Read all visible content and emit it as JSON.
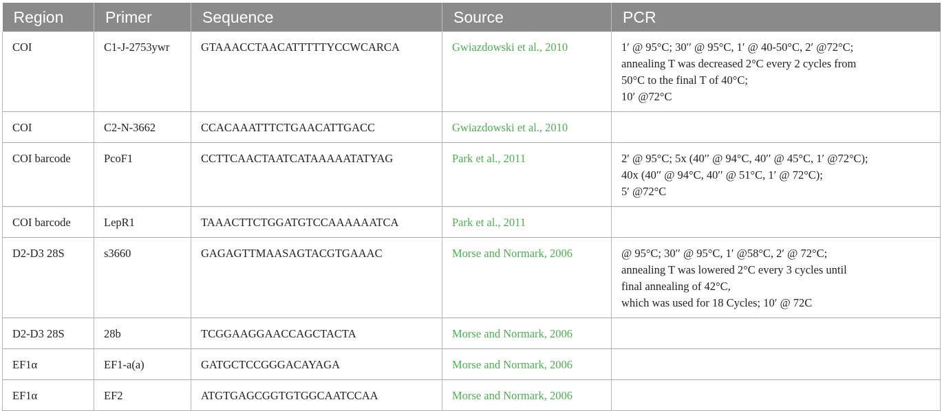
{
  "table": {
    "headers": [
      "Region",
      "Primer",
      "Sequence",
      "Source",
      "PCR"
    ],
    "rows": [
      {
        "region": "COI",
        "primer": "C1-J-2753ywr",
        "sequence": "GTAAACCTAACATTTTTYCCWCARCA",
        "source": "Gwiazdowski et al., 2010",
        "pcr": [
          "1′ @ 95°C; 30′′ @ 95°C, 1′ @ 40-50°C, 2′ @72°C;",
          "annealing T was decreased 2°C every 2 cycles from",
          "50°C to the final T of 40°C;",
          "10′ @72°C"
        ]
      },
      {
        "region": "COI",
        "primer": "C2-N-3662",
        "sequence": "CCACAAATTTCTGAACATTGACC",
        "source": "Gwiazdowski et al., 2010",
        "pcr": []
      },
      {
        "region": "COI barcode",
        "primer": "PcoF1",
        "sequence": "CCTTCAACTAATCATAAAAATATYAG",
        "source": "Park et al., 2011",
        "pcr": [
          "2′ @ 95°C; 5x (40′′ @ 94°C, 40′′ @ 45°C, 1′ @72°C);",
          "40x (40′′ @ 94°C, 40′′ @ 51°C, 1′ @ 72°C);",
          "5′ @72°C"
        ]
      },
      {
        "region": "COI barcode",
        "primer": "LepR1",
        "sequence": "TAAACTTCTGGATGTCCAAAAAATCA",
        "source": "Park et al., 2011",
        "pcr": []
      },
      {
        "region": "D2-D3 28S",
        "primer": "s3660",
        "sequence": "GAGAGTTMAASAGTACGTGAAAC",
        "source": "Morse and Normark, 2006",
        "pcr": [
          "@ 95°C; 30′′ @ 95°C, 1′ @58°C, 2′ @ 72°C;",
          "annealing T was lowered 2°C every 3 cycles until",
          "final annealing of 42°C,",
          "which was used for 18 Cycles; 10′ @ 72C"
        ]
      },
      {
        "region": "D2-D3 28S",
        "primer": "28b",
        "sequence": "TCGGAAGGAACCAGCTACTA",
        "source": "Morse and Normark, 2006",
        "pcr": []
      },
      {
        "region": "EF1α",
        "primer": "EF1-a(a)",
        "sequence": "GATGCTCCGGGACAYAGA",
        "source": "Morse and Normark, 2006",
        "pcr": []
      },
      {
        "region": "EF1α",
        "primer": "EF2",
        "sequence": "ATGTGAGCGGTGTGGCAATCCAA",
        "source": "Morse and Normark, 2006",
        "pcr": []
      }
    ]
  },
  "colors": {
    "header_bg": "#8a8a8a",
    "header_text": "#ffffff",
    "source_link": "#4caf50",
    "body_text": "#222222"
  }
}
